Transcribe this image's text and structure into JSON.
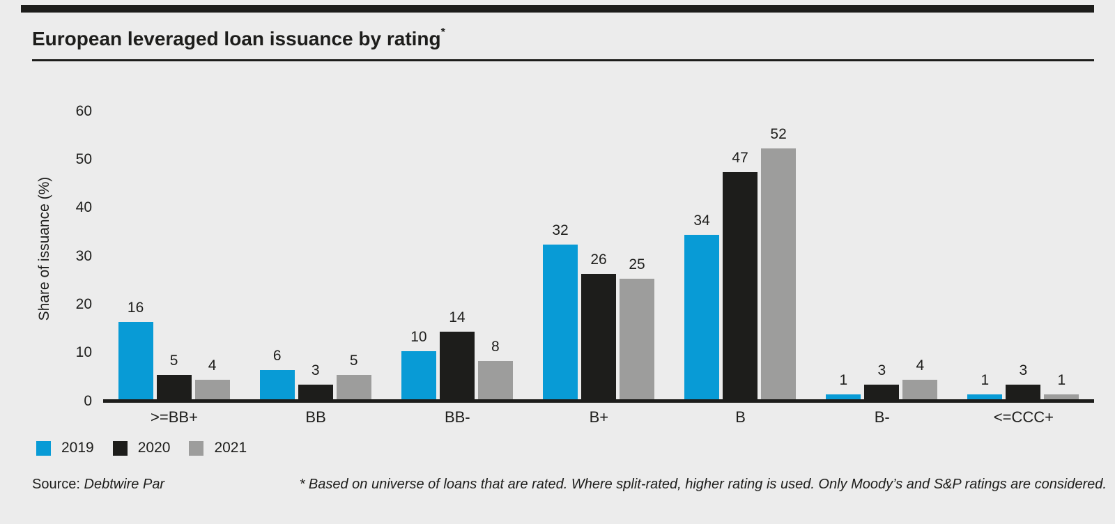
{
  "page": {
    "background_color": "#ececec",
    "ink_color": "#1d1d1b",
    "accent_color": "#089bd6"
  },
  "header": {
    "title": "European leveraged loan issuance by rating",
    "title_superscript": "*"
  },
  "chart_data": {
    "type": "bar",
    "title": "European leveraged loan issuance by rating*",
    "categories": [
      ">=BB+",
      "BB",
      "BB-",
      "B+",
      "B",
      "B-",
      "<=CCC+"
    ],
    "series": [
      {
        "name": "2019",
        "color": "#089bd6",
        "values": [
          16,
          6,
          10,
          32,
          34,
          1,
          1
        ]
      },
      {
        "name": "2020",
        "color": "#1d1d1b",
        "values": [
          5,
          3,
          14,
          26,
          47,
          3,
          3
        ]
      },
      {
        "name": "2021",
        "color": "#9d9d9c",
        "values": [
          4,
          5,
          8,
          25,
          52,
          4,
          1
        ]
      }
    ],
    "xlabel": "",
    "ylabel": "Share of issuance (%)",
    "yticks": [
      0,
      10,
      20,
      30,
      40,
      50,
      60
    ],
    "ylim": [
      0,
      60
    ],
    "grid": false,
    "value_labels": true,
    "legend_position": "bottom-left"
  },
  "footer": {
    "source_label": "Source:",
    "source_value": "Debtwire Par",
    "footnote": "* Based on universe of loans that are rated. Where split-rated, higher rating is used. Only Moody’s and S&P ratings are considered."
  }
}
